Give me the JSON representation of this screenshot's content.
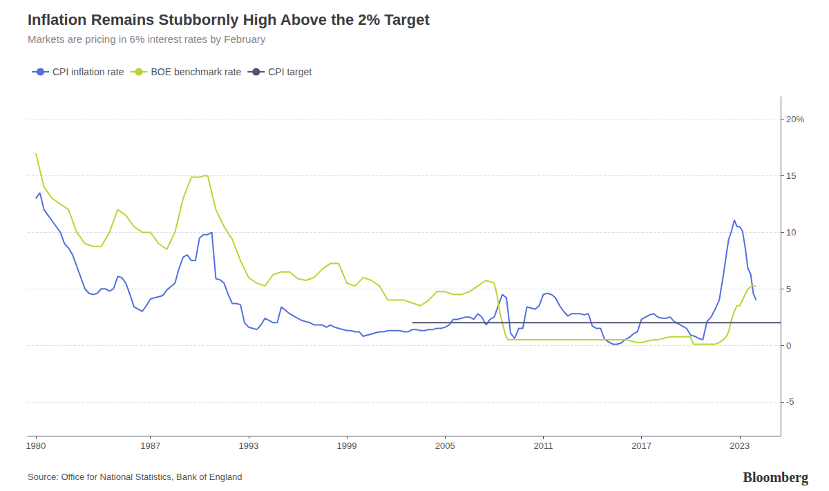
{
  "chart_data": {
    "type": "line",
    "title": "Inflation Remains Stubbornly High Above the 2% Target",
    "subtitle": "Markets are pricing in 6% interest rates by February",
    "annotations": [
      "Source: Office for National Statistics, Bank of England",
      "Bloomberg"
    ],
    "legend": "upper left",
    "grid": true,
    "xlim": [
      1979.5,
      2025.5
    ],
    "xticks": [
      1980,
      1987,
      1993,
      1999,
      2005,
      2011,
      2017,
      2023
    ],
    "ylim": [
      -8,
      22
    ],
    "yticks": [
      -5,
      0,
      5,
      10,
      15,
      {
        "value": 20,
        "label": "20%"
      }
    ],
    "series": [
      {
        "name": "CPI inflation rate",
        "x": [
          1980.0,
          1980.25,
          1980.5,
          1980.75,
          1981.0,
          1981.25,
          1981.5,
          1981.75,
          1982.0,
          1982.25,
          1982.5,
          1982.75,
          1983.0,
          1983.25,
          1983.5,
          1983.75,
          1984.0,
          1984.25,
          1984.5,
          1984.75,
          1985.0,
          1985.25,
          1985.5,
          1985.75,
          1986.0,
          1986.25,
          1986.5,
          1986.75,
          1987.0,
          1987.25,
          1987.5,
          1987.75,
          1988.0,
          1988.25,
          1988.5,
          1988.75,
          1989.0,
          1989.25,
          1989.5,
          1989.75,
          1990.0,
          1990.25,
          1990.5,
          1990.75,
          1991.0,
          1991.25,
          1991.5,
          1991.75,
          1992.0,
          1992.25,
          1992.5,
          1992.75,
          1993.0,
          1993.25,
          1993.5,
          1993.75,
          1994.0,
          1994.25,
          1994.5,
          1994.75,
          1995.0,
          1995.25,
          1995.5,
          1995.75,
          1996.0,
          1996.25,
          1996.5,
          1996.75,
          1997.0,
          1997.25,
          1997.5,
          1997.75,
          1998.0,
          1998.25,
          1998.5,
          1998.75,
          1999.0,
          1999.25,
          1999.5,
          1999.75,
          2000.0,
          2000.25,
          2000.5,
          2000.75,
          2001.0,
          2001.25,
          2001.5,
          2001.75,
          2002.0,
          2002.25,
          2002.5,
          2002.75,
          2003.0,
          2003.25,
          2003.5,
          2003.75,
          2004.0,
          2004.25,
          2004.5,
          2004.75,
          2005.0,
          2005.25,
          2005.5,
          2005.75,
          2006.0,
          2006.25,
          2006.5,
          2006.75,
          2007.0,
          2007.25,
          2007.5,
          2007.75,
          2008.0,
          2008.25,
          2008.5,
          2008.75,
          2009.0,
          2009.25,
          2009.5,
          2009.75,
          2010.0,
          2010.25,
          2010.5,
          2010.75,
          2011.0,
          2011.25,
          2011.5,
          2011.75,
          2012.0,
          2012.25,
          2012.5,
          2012.75,
          2013.0,
          2013.25,
          2013.5,
          2013.75,
          2014.0,
          2014.25,
          2014.5,
          2014.75,
          2015.0,
          2015.25,
          2015.5,
          2015.75,
          2016.0,
          2016.25,
          2016.5,
          2016.75,
          2017.0,
          2017.25,
          2017.5,
          2017.75,
          2018.0,
          2018.25,
          2018.5,
          2018.75,
          2019.0,
          2019.25,
          2019.5,
          2019.75,
          2020.0,
          2020.25,
          2020.5,
          2020.75,
          2021.0,
          2021.25,
          2021.5,
          2021.75,
          2022.0,
          2022.17,
          2022.33,
          2022.5,
          2022.67,
          2022.83,
          2023.0,
          2023.17,
          2023.33,
          2023.5,
          2023.67,
          2023.83,
          2024.0
        ],
        "values": [
          13.0,
          13.5,
          12.0,
          11.5,
          11.0,
          10.5,
          10.0,
          9.0,
          8.6,
          8.0,
          7.0,
          6.0,
          5.0,
          4.6,
          4.5,
          4.6,
          5.0,
          5.0,
          4.8,
          5.0,
          6.1,
          6.0,
          5.5,
          4.5,
          3.4,
          3.2,
          3.0,
          3.5,
          4.1,
          4.2,
          4.3,
          4.4,
          4.9,
          5.2,
          5.5,
          6.8,
          7.8,
          8.0,
          7.5,
          7.5,
          9.5,
          9.8,
          9.8,
          10.0,
          5.9,
          5.8,
          5.5,
          4.5,
          3.7,
          3.7,
          3.6,
          2.0,
          1.6,
          1.5,
          1.4,
          1.8,
          2.4,
          2.2,
          2.0,
          2.0,
          3.4,
          3.1,
          2.8,
          2.6,
          2.4,
          2.2,
          2.1,
          2.0,
          1.8,
          1.8,
          1.8,
          1.6,
          1.8,
          1.6,
          1.5,
          1.4,
          1.3,
          1.3,
          1.2,
          1.2,
          0.8,
          0.9,
          1.0,
          1.1,
          1.2,
          1.2,
          1.3,
          1.3,
          1.3,
          1.3,
          1.2,
          1.2,
          1.4,
          1.4,
          1.3,
          1.3,
          1.4,
          1.4,
          1.5,
          1.5,
          1.6,
          1.8,
          2.3,
          2.3,
          2.4,
          2.5,
          2.5,
          2.3,
          2.8,
          2.5,
          1.8,
          2.3,
          2.5,
          3.5,
          4.5,
          4.2,
          1.1,
          0.6,
          1.5,
          1.5,
          3.4,
          3.3,
          3.2,
          3.5,
          4.5,
          4.6,
          4.5,
          4.2,
          3.5,
          3.0,
          2.6,
          2.8,
          2.8,
          2.8,
          2.7,
          2.8,
          1.7,
          1.5,
          1.5,
          0.5,
          0.3,
          0.1,
          0.1,
          0.2,
          0.5,
          0.7,
          1.0,
          1.2,
          2.3,
          2.5,
          2.7,
          2.8,
          2.5,
          2.4,
          2.4,
          2.5,
          2.1,
          1.9,
          1.7,
          1.5,
          0.9,
          0.8,
          0.6,
          0.5,
          2.1,
          2.5,
          3.2,
          4.0,
          6.2,
          7.9,
          9.4,
          10.1,
          11.1,
          10.5,
          10.5,
          10.1,
          8.7,
          6.8,
          6.3,
          4.6,
          4.0
        ]
      },
      {
        "name": "BOE benchmark rate",
        "x": [
          1980.0,
          1980.5,
          1981.0,
          1981.5,
          1982.0,
          1982.5,
          1983.0,
          1983.5,
          1984.0,
          1984.5,
          1985.0,
          1985.5,
          1986.0,
          1986.5,
          1987.0,
          1987.5,
          1988.0,
          1988.5,
          1989.0,
          1989.5,
          1990.0,
          1990.25,
          1990.5,
          1991.0,
          1991.5,
          1992.0,
          1992.5,
          1993.0,
          1993.5,
          1994.0,
          1994.5,
          1995.0,
          1995.5,
          1996.0,
          1996.5,
          1997.0,
          1997.5,
          1998.0,
          1998.5,
          1999.0,
          1999.5,
          2000.0,
          2000.5,
          2001.0,
          2001.5,
          2002.0,
          2002.5,
          2003.0,
          2003.5,
          2004.0,
          2004.5,
          2005.0,
          2005.5,
          2006.0,
          2006.5,
          2007.0,
          2007.5,
          2008.0,
          2008.17,
          2008.33,
          2008.5,
          2008.67,
          2008.83,
          2009.0,
          2009.17,
          2009.25,
          2009.5,
          2010.0,
          2011.0,
          2012.0,
          2013.0,
          2014.0,
          2015.0,
          2016.0,
          2016.75,
          2017.0,
          2017.75,
          2018.0,
          2018.75,
          2019.0,
          2019.75,
          2020.0,
          2020.17,
          2020.25,
          2021.0,
          2021.5,
          2021.75,
          2022.0,
          2022.17,
          2022.33,
          2022.5,
          2022.67,
          2022.83,
          2023.0,
          2023.25,
          2023.5,
          2023.75,
          2024.0
        ],
        "values": [
          17.0,
          14.0,
          13.0,
          12.5,
          12.0,
          10.0,
          9.0,
          8.75,
          8.75,
          10.0,
          12.0,
          11.5,
          10.5,
          10.0,
          10.0,
          9.0,
          8.5,
          10.0,
          13.0,
          14.875,
          14.875,
          15.0,
          15.0,
          12.0,
          10.5,
          9.375,
          7.5,
          6.0,
          5.5,
          5.25,
          6.25,
          6.5,
          6.5,
          5.9,
          5.75,
          6.0,
          6.75,
          7.25,
          7.25,
          5.5,
          5.25,
          6.0,
          5.75,
          5.25,
          4.0,
          4.0,
          4.0,
          3.75,
          3.5,
          4.0,
          4.75,
          4.75,
          4.5,
          4.5,
          4.75,
          5.25,
          5.75,
          5.5,
          4.5,
          3.0,
          2.0,
          1.0,
          0.5,
          0.5,
          0.5,
          0.5,
          0.5,
          0.5,
          0.5,
          0.5,
          0.5,
          0.5,
          0.5,
          0.5,
          0.25,
          0.25,
          0.5,
          0.5,
          0.75,
          0.75,
          0.75,
          0.75,
          0.1,
          0.1,
          0.1,
          0.1,
          0.25,
          0.5,
          0.75,
          1.25,
          2.25,
          3.0,
          3.5,
          3.5,
          4.25,
          5.0,
          5.25,
          5.25
        ]
      },
      {
        "name": "CPI target",
        "x": [
          2003.0,
          2025.5
        ],
        "values": [
          2.0,
          2.0
        ]
      }
    ]
  }
}
